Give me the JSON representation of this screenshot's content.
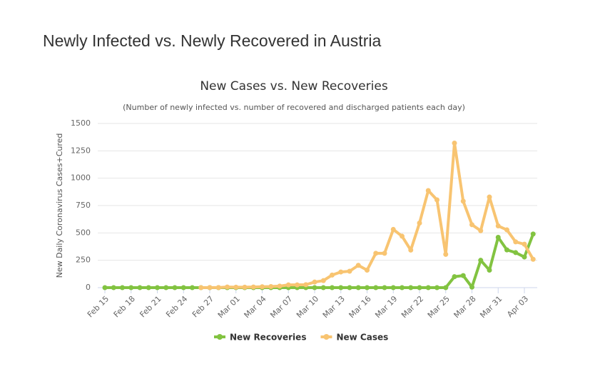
{
  "heading": "Newly Infected vs. Newly Recovered in Austria",
  "chart_data": {
    "type": "line",
    "title": "New Cases vs. New Recoveries",
    "subtitle": "(Number of newly infected vs. number of recovered and discharged patients each day)",
    "y_label": "New Daily Coronavirus Cases+Cured",
    "categories": [
      "Feb 15",
      null,
      null,
      "Feb 18",
      null,
      null,
      "Feb 21",
      null,
      null,
      "Feb 24",
      null,
      null,
      "Feb 27",
      null,
      null,
      "Mar 01",
      null,
      null,
      "Mar 04",
      null,
      null,
      "Mar 07",
      null,
      null,
      "Mar 10",
      null,
      null,
      "Mar 13",
      null,
      null,
      "Mar 16",
      null,
      null,
      "Mar 19",
      null,
      null,
      "Mar 22",
      null,
      null,
      "Mar 25",
      null,
      null,
      "Mar 28",
      null,
      null,
      "Mar 31",
      null,
      null,
      "Apr 03",
      null
    ],
    "series": [
      {
        "name": "New Recoveries",
        "color": "#82c341",
        "values": [
          0,
          0,
          0,
          0,
          0,
          0,
          0,
          0,
          0,
          0,
          0,
          0,
          0,
          0,
          0,
          0,
          0,
          0,
          0,
          0,
          0,
          0,
          0,
          0,
          0,
          0,
          0,
          0,
          0,
          0,
          0,
          0,
          0,
          0,
          0,
          0,
          0,
          0,
          0,
          0,
          100,
          110,
          5,
          250,
          160,
          460,
          345,
          320,
          280,
          490
        ]
      },
      {
        "name": "New Cases",
        "color": "#f8c471",
        "values": [
          null,
          null,
          null,
          null,
          null,
          null,
          null,
          null,
          null,
          null,
          null,
          0,
          1,
          1,
          6,
          4,
          4,
          6,
          8,
          10,
          14,
          25,
          25,
          27,
          51,
          64,
          115,
          143,
          150,
          204,
          160,
          314,
          314,
          532,
          470,
          343,
          590,
          887,
          802,
          304,
          1321,
          790,
          575,
          520,
          828,
          564,
          528,
          418,
          397,
          259
        ]
      }
    ],
    "ylim": [
      0,
      1500
    ],
    "yticks": [
      0,
      250,
      500,
      750,
      1000,
      1250,
      1500
    ],
    "grid": true,
    "legend": "bottom"
  }
}
